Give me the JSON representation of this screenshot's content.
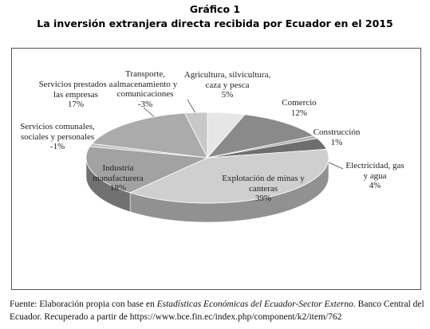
{
  "title": "Gráfico 1",
  "chart_data": {
    "type": "pie3d",
    "title": "La inversión extranjera directa recibida por Ecuador en el 2015",
    "categories": [
      "Agricultura, silvicultura, caza y pesca",
      "Comercio",
      "Construcción",
      "Electricidad, gas y agua",
      "Explotación de minas y canteras",
      "Industria manufacturera",
      "Servicios comunales, sociales y personales",
      "Servicios prestados a las empresas",
      "Transporte, almacenamiento y comunicaciones"
    ],
    "values": [
      5,
      12,
      1,
      4,
      39,
      18,
      -1,
      17,
      -3
    ],
    "value_labels": [
      "5%",
      "12%",
      "1%",
      "4%",
      "39%",
      "18%",
      "-1%",
      "17%",
      "-3%"
    ],
    "colors": [
      "#e6e6e6",
      "#8a8a8a",
      "#b0b0b0",
      "#6e6e6e",
      "#cfcfcf",
      "#a2a2a2",
      "#bdbdbd",
      "#ababab",
      "#c8c8c8"
    ]
  },
  "source": {
    "prefix": "Fuente: Elaboración propia con base en ",
    "italic": "Estadísticas Económicas del Ecuador-Sector Externo",
    "suffix": ". Banco Central del Ecuador. Recuperado a partir de https://www.bce.fin.ec/index.php/component/k2/item/762"
  }
}
